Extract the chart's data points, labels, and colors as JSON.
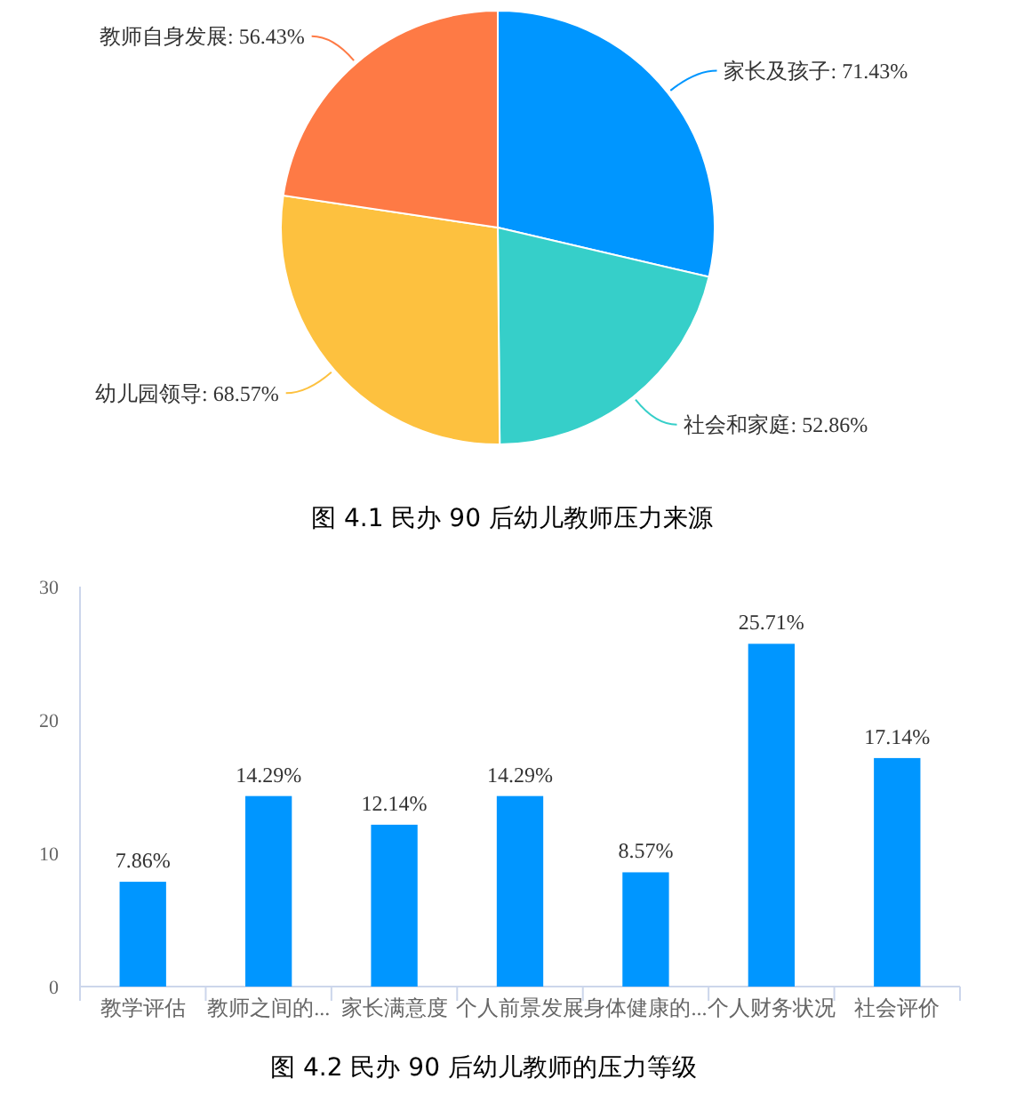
{
  "chart_data": [
    {
      "type": "pie",
      "title": "图 4.1 民办 90 后幼儿教师压力来源",
      "categories": [
        "家长及孩子",
        "社会和家庭",
        "幼儿园领导",
        "教师自身发展"
      ],
      "values": [
        71.43,
        52.86,
        68.57,
        56.43
      ],
      "colors": [
        "#0096ff",
        "#36cfc9",
        "#fdc13f",
        "#fe7a45"
      ],
      "value_labels": [
        "71.43%",
        "52.86%",
        "68.57%",
        "56.43%"
      ]
    },
    {
      "type": "bar",
      "title": "图 4.2 民办 90 后幼儿教师的压力等级",
      "categories": [
        "教学评估",
        "教师之间的...",
        "家长满意度",
        "个人前景发展",
        "身体健康的...",
        "个人财务状况",
        "社会评价"
      ],
      "values": [
        7.86,
        14.29,
        12.14,
        14.29,
        8.57,
        25.71,
        17.14
      ],
      "color": "#0096ff",
      "ylim": [
        0,
        30
      ],
      "yticks": [
        0,
        10,
        20,
        30
      ],
      "value_labels": [
        "7.86%",
        "14.29%",
        "12.14%",
        "14.29%",
        "8.57%",
        "25.71%",
        "17.14%"
      ]
    }
  ]
}
